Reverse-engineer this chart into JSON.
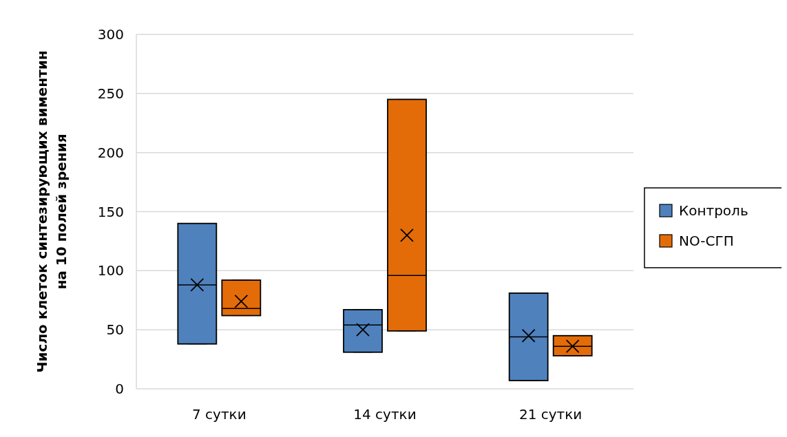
{
  "chart_data": {
    "type": "box",
    "ylabel": "Число клеток синтезирующих виментин на 10 полей зрения",
    "categories": [
      "7 сутки",
      "14 сутки",
      "21 сутки"
    ],
    "series": [
      {
        "name": "Контроль",
        "color": "#4f81bd",
        "boxes": [
          {
            "low": 38,
            "q1": 38,
            "median": 88,
            "q3": 140,
            "high": 140,
            "mean": 88
          },
          {
            "low": 31,
            "q1": 31,
            "median": 54,
            "q3": 67,
            "high": 67,
            "mean": 50
          },
          {
            "low": 7,
            "q1": 7,
            "median": 44,
            "q3": 81,
            "high": 81,
            "mean": 45
          }
        ]
      },
      {
        "name": "NO-СГП",
        "color": "#e36c09",
        "boxes": [
          {
            "low": 62,
            "q1": 62,
            "median": 68,
            "q3": 92,
            "high": 92,
            "mean": 74
          },
          {
            "low": 49,
            "q1": 49,
            "median": 96,
            "q3": 245,
            "high": 245,
            "mean": 130
          },
          {
            "low": 28,
            "q1": 28,
            "median": 36,
            "q3": 45,
            "high": 45,
            "mean": 36
          }
        ]
      }
    ],
    "ylim": [
      0,
      300
    ],
    "yticks": [
      0,
      50,
      100,
      150,
      200,
      250,
      300
    ],
    "grid": "y",
    "legend": "right",
    "marker": "cross"
  }
}
